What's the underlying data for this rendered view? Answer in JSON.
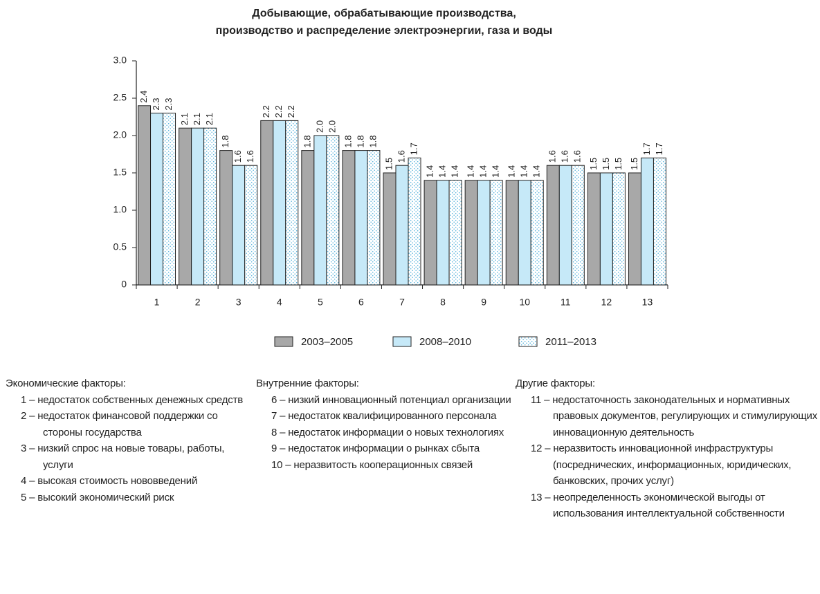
{
  "chart_data": {
    "type": "bar",
    "title": [
      "Добывающие, обрабатывающие производства,",
      "производство и распределение электроэнергии, газа и воды"
    ],
    "categories": [
      "1",
      "2",
      "3",
      "4",
      "5",
      "6",
      "7",
      "8",
      "9",
      "10",
      "11",
      "12",
      "13"
    ],
    "series": [
      {
        "name": "2003–2005",
        "color": "#a8a8a8",
        "values": [
          2.4,
          2.1,
          1.8,
          2.2,
          1.8,
          1.8,
          1.5,
          1.4,
          1.4,
          1.4,
          1.6,
          1.5,
          1.5
        ],
        "value_labels": [
          "2.4",
          "2.1",
          "1.8",
          "2.2",
          "1.8",
          "1.8",
          "1.5",
          "1.4",
          "1.4",
          "1.4",
          "1.6",
          "1.5",
          "1.5"
        ]
      },
      {
        "name": "2008–2010",
        "color": "#c6e9f8",
        "values": [
          2.3,
          2.1,
          1.6,
          2.2,
          2.0,
          1.8,
          1.6,
          1.4,
          1.4,
          1.4,
          1.6,
          1.5,
          1.7
        ],
        "value_labels": [
          "2.3",
          "2.1",
          "1.6",
          "2.2",
          "2.0",
          "1.8",
          "1.6",
          "1.4",
          "1.4",
          "1.4",
          "1.6",
          "1.5",
          "1.7"
        ]
      },
      {
        "name": "2011–2013",
        "color": "#ffffff",
        "pattern": "dots",
        "values": [
          2.3,
          2.1,
          1.6,
          2.2,
          2.0,
          1.8,
          1.7,
          1.4,
          1.4,
          1.4,
          1.6,
          1.5,
          1.7
        ],
        "value_labels": [
          "2.3",
          "2.1",
          "1.6",
          "2.2",
          "2.0",
          "1.8",
          "1.7",
          "1.4",
          "1.4",
          "1.4",
          "1.6",
          "1.5",
          "1.7"
        ]
      }
    ],
    "ylim": [
      0,
      3
    ],
    "yticks": [
      0,
      0.5,
      {
        "value": 1,
        "label": "1.0"
      },
      1.5,
      {
        "value": 2,
        "label": "2.0"
      },
      2.5,
      {
        "value": 3,
        "label": "3.0"
      }
    ]
  },
  "notes": [
    {
      "title": "Экономические факторы:",
      "items": [
        "1 – недостаток собственных денежных средств",
        "2 – недостаток финансовой поддержки со стороны государства",
        "3 – низкий спрос на новые товары, работы, услуги",
        "4 – высокая стоимость нововведений",
        "5 – высокий экономический риск"
      ]
    },
    {
      "title": "Внутренние факторы:",
      "items": [
        "6 – низкий инновационный потенциал организации",
        "7 – недостаток квалифицированного персонала",
        "8 – недостаток информации о новых технологиях",
        "9 – недостаток информации о рынках сбыта",
        "10 – неразвитость кооперационных связей"
      ]
    },
    {
      "title": "Другие факторы:",
      "items": [
        "11 – недостаточность законодательных и нормативных правовых документов, регулирующих и стимулирующих инновационную деятельность",
        "12 – неразвитость инновационной инфраструктуры (посреднических, информационных, юридических, банковских, прочих услуг)",
        "13 – неопределенность экономической выгоды от использования интеллектуальной собственности"
      ]
    }
  ]
}
